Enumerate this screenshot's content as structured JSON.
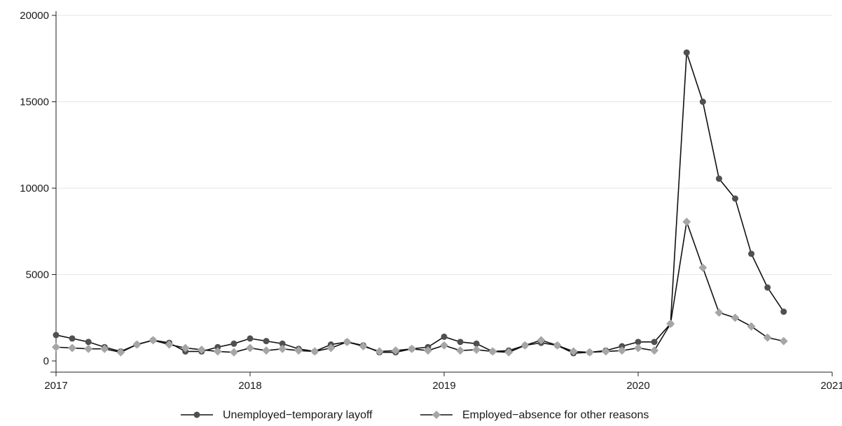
{
  "chart_data": {
    "type": "line",
    "title": "",
    "xlabel": "",
    "ylabel": "",
    "xlim": [
      2017,
      2021
    ],
    "ylim": [
      0,
      20000
    ],
    "x_ticks": [
      2017,
      2018,
      2019,
      2020,
      2021
    ],
    "x_tick_labels": [
      "2017",
      "2018",
      "2019",
      "2020",
      "2021"
    ],
    "y_ticks": [
      0,
      5000,
      10000,
      15000,
      20000
    ],
    "y_tick_labels": [
      "0",
      "5000",
      "10000",
      "15000",
      "20000"
    ],
    "grid": "horizontal",
    "legend_position": "bottom",
    "x": [
      2017.0,
      2017.0833,
      2017.1667,
      2017.25,
      2017.3333,
      2017.4167,
      2017.5,
      2017.5833,
      2017.6667,
      2017.75,
      2017.8333,
      2017.9167,
      2018.0,
      2018.0833,
      2018.1667,
      2018.25,
      2018.3333,
      2018.4167,
      2018.5,
      2018.5833,
      2018.6667,
      2018.75,
      2018.8333,
      2018.9167,
      2019.0,
      2019.0833,
      2019.1667,
      2019.25,
      2019.3333,
      2019.4167,
      2019.5,
      2019.5833,
      2019.6667,
      2019.75,
      2019.8333,
      2019.9167,
      2020.0,
      2020.0833,
      2020.1667,
      2020.25,
      2020.3333,
      2020.4167,
      2020.5,
      2020.5833,
      2020.6667,
      2020.75
    ],
    "series": [
      {
        "name": "Unemployed−temporary layoff",
        "color": "#505050",
        "marker": "circle",
        "values": [
          1500,
          1300,
          1100,
          800,
          550,
          950,
          1200,
          1050,
          550,
          550,
          800,
          1000,
          1300,
          1150,
          1000,
          700,
          550,
          950,
          1100,
          900,
          500,
          500,
          700,
          800,
          1400,
          1100,
          1000,
          550,
          600,
          900,
          1050,
          900,
          450,
          500,
          600,
          850,
          1100,
          1100,
          2150,
          17850,
          15000,
          10550,
          9400,
          6200,
          4250,
          2850
        ]
      },
      {
        "name": "Employed−absence for other reasons",
        "color": "#a6a6a6",
        "marker": "diamond",
        "values": [
          800,
          750,
          700,
          700,
          500,
          950,
          1200,
          950,
          750,
          650,
          550,
          500,
          750,
          600,
          700,
          600,
          550,
          750,
          1100,
          850,
          550,
          600,
          700,
          600,
          900,
          600,
          650,
          550,
          500,
          900,
          1200,
          900,
          550,
          500,
          550,
          600,
          750,
          600,
          2150,
          8050,
          5400,
          2800,
          2500,
          2000,
          1350,
          1150
        ]
      }
    ]
  }
}
